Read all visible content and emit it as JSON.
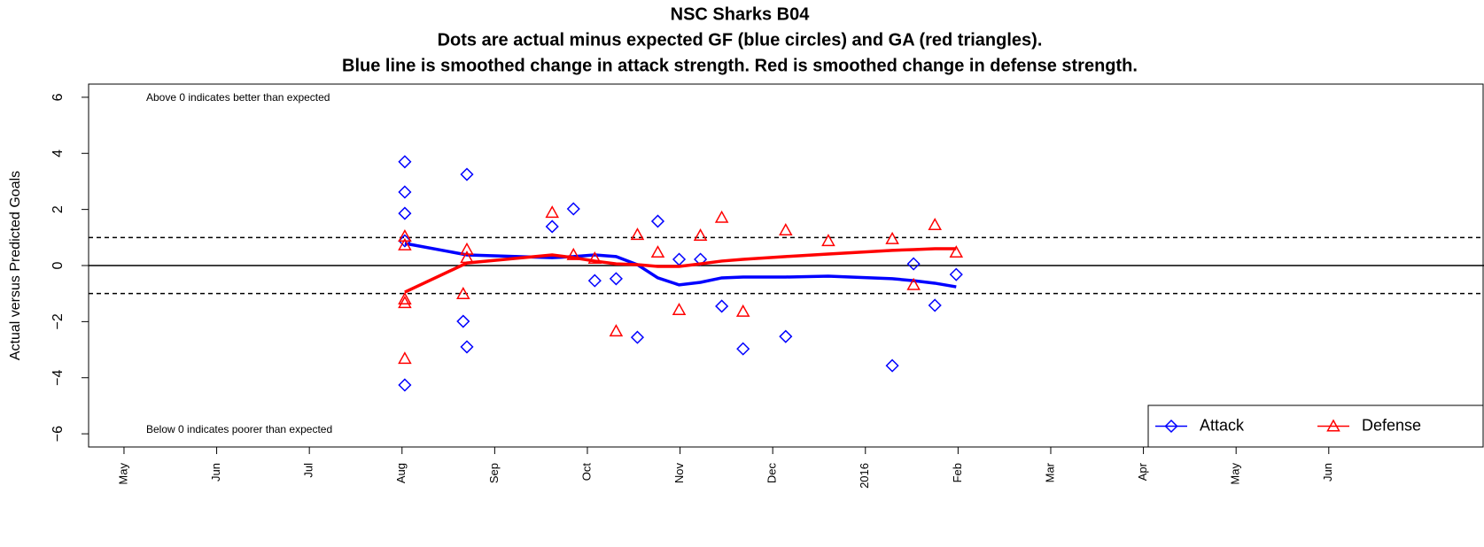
{
  "chart_data": {
    "type": "scatter",
    "title": [
      "NSC Sharks B04",
      "Dots are actual minus expected GF (blue circles) and GA (red triangles).",
      "Blue line is smoothed change in attack strength. Red is smoothed change in defense strength."
    ],
    "ylabel": "Actual versus Predicted Goals",
    "annotations": [
      "Above 0 indicates better than expected",
      "Below 0 indicates poorer than expected"
    ],
    "xlim": [
      4.618,
      19.675
    ],
    "xticks": [
      {
        "value": 5,
        "label": "May"
      },
      {
        "value": 6,
        "label": "Jun"
      },
      {
        "value": 7,
        "label": "Jul"
      },
      {
        "value": 8,
        "label": "Aug"
      },
      {
        "value": 9,
        "label": "Sep"
      },
      {
        "value": 10,
        "label": "Oct"
      },
      {
        "value": 11,
        "label": "Nov"
      },
      {
        "value": 12,
        "label": "Dec"
      },
      {
        "value": 13,
        "label": "2016"
      },
      {
        "value": 14,
        "label": "Feb"
      },
      {
        "value": 15,
        "label": "Mar"
      },
      {
        "value": 16,
        "label": "Apr"
      },
      {
        "value": 17,
        "label": "May"
      },
      {
        "value": 18,
        "label": "Jun"
      }
    ],
    "ylim": [
      -6.47,
      6.47
    ],
    "yticks": [
      {
        "value": -6,
        "label": "−6"
      },
      {
        "value": -4,
        "label": "−4"
      },
      {
        "value": -2,
        "label": "−2"
      },
      0,
      2,
      4,
      6
    ],
    "hlines": [
      {
        "y": 0,
        "style": "solid"
      },
      {
        "y": 1,
        "style": "dashed"
      },
      {
        "y": -1,
        "style": "dashed"
      }
    ],
    "legend": "bottom-right",
    "series": [
      {
        "name": "Attack",
        "color": "#0000ff",
        "marker": "diamond",
        "x": [
          8.03,
          8.03,
          8.03,
          8.03,
          8.03,
          8.7,
          8.66,
          8.7,
          9.62,
          9.85,
          10.08,
          10.31,
          10.54,
          10.76,
          10.99,
          11.22,
          11.45,
          11.68,
          12.14,
          13.29,
          13.52,
          13.75,
          13.98
        ],
        "values": [
          3.7,
          2.62,
          1.86,
          0.88,
          -4.26,
          3.25,
          -1.99,
          -2.9,
          1.39,
          2.02,
          -0.54,
          -0.47,
          -2.56,
          1.58,
          0.22,
          0.22,
          -1.45,
          -2.97,
          -2.53,
          -3.57,
          0.06,
          -1.42,
          -0.32
        ],
        "smooth_x": [
          8.03,
          8.7,
          9.62,
          9.85,
          10.08,
          10.31,
          10.54,
          10.76,
          10.99,
          11.22,
          11.45,
          11.68,
          12.14,
          12.6,
          13.29,
          13.52,
          13.75,
          13.98
        ],
        "smooth_values": [
          0.79,
          0.38,
          0.28,
          0.32,
          0.38,
          0.32,
          0.03,
          -0.44,
          -0.69,
          -0.6,
          -0.44,
          -0.41,
          -0.41,
          -0.38,
          -0.47,
          -0.54,
          -0.63,
          -0.76
        ]
      },
      {
        "name": "Defense",
        "color": "#ff0000",
        "marker": "triangle",
        "x": [
          8.03,
          8.03,
          8.03,
          8.03,
          8.03,
          8.7,
          8.7,
          8.66,
          9.62,
          9.85,
          10.08,
          10.31,
          10.54,
          10.76,
          10.99,
          11.22,
          11.45,
          11.68,
          12.14,
          12.6,
          13.29,
          13.52,
          13.75,
          13.98
        ],
        "values": [
          1.04,
          0.73,
          -1.2,
          -1.33,
          -3.32,
          0.57,
          0.28,
          -1.01,
          1.89,
          0.38,
          0.25,
          -2.34,
          1.1,
          0.47,
          -1.58,
          1.07,
          1.71,
          -1.64,
          1.26,
          0.88,
          0.95,
          -0.69,
          1.45,
          0.47
        ],
        "smooth_x": [
          8.03,
          8.7,
          9.62,
          9.85,
          10.08,
          10.31,
          10.54,
          10.76,
          10.99,
          11.22,
          11.45,
          11.68,
          12.14,
          12.6,
          13.29,
          13.52,
          13.75,
          13.98
        ],
        "smooth_values": [
          -0.95,
          0.09,
          0.38,
          0.28,
          0.16,
          0.06,
          0.03,
          -0.03,
          -0.03,
          0.06,
          0.16,
          0.22,
          0.32,
          0.41,
          0.54,
          0.57,
          0.6,
          0.6
        ]
      }
    ]
  }
}
